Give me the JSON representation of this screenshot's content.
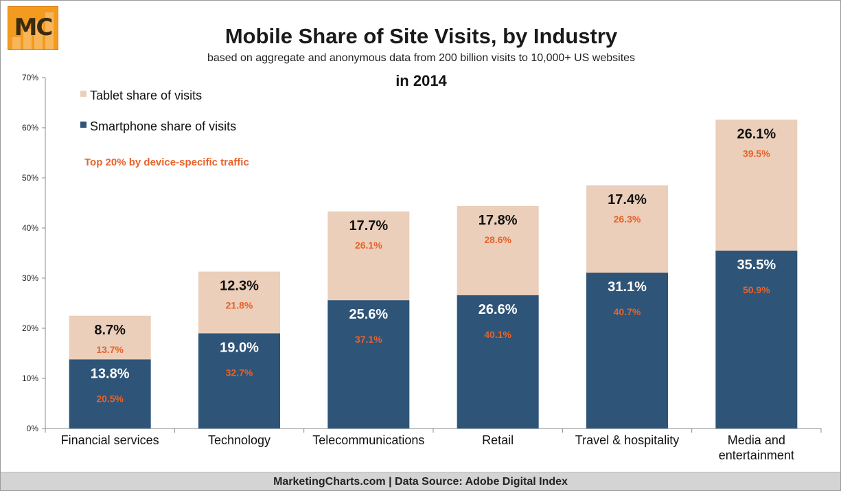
{
  "header": {
    "title": "Mobile Share of Site Visits, by Industry",
    "subtitle": "based on aggregate and anonymous data from 200 billion visits to 10,000+ US websites",
    "year": "in 2014"
  },
  "logo": {
    "text": "MC"
  },
  "footer": {
    "text": "MarketingCharts.com | Data Source: Adobe Digital Index"
  },
  "note": "Top 20% by device-specific traffic",
  "colors": {
    "smartphone": "#2e5478",
    "tablet": "#ebcfba",
    "note": "#e8622a",
    "logo": "#f39b1e"
  },
  "chart_data": {
    "type": "bar",
    "stacked": true,
    "categories": [
      "Financial services",
      "Technology",
      "Telecommunications",
      "Retail",
      "Travel & hospitality",
      "Media and entertainment"
    ],
    "series": [
      {
        "name": "Smartphone share of visits",
        "values": [
          13.8,
          19.0,
          25.6,
          26.6,
          31.1,
          35.5
        ],
        "labels": [
          "13.8%",
          "19.0%",
          "25.6%",
          "26.6%",
          "31.1%",
          "35.5%"
        ],
        "top20_labels": [
          "20.5%",
          "32.7%",
          "37.1%",
          "40.1%",
          "40.7%",
          "50.9%"
        ]
      },
      {
        "name": "Tablet share of visits",
        "values": [
          8.7,
          12.3,
          17.7,
          17.8,
          17.4,
          26.1
        ],
        "labels": [
          "8.7%",
          "12.3%",
          "17.7%",
          "17.8%",
          "17.4%",
          "26.1%"
        ],
        "top20_labels": [
          "13.7%",
          "21.8%",
          "26.1%",
          "28.6%",
          "26.3%",
          "39.5%"
        ]
      }
    ],
    "ylim": [
      0,
      70
    ],
    "yticks": [
      "0%",
      "10%",
      "20%",
      "30%",
      "40%",
      "50%",
      "60%",
      "70%"
    ],
    "legend_position": "top-left",
    "grid": false
  }
}
